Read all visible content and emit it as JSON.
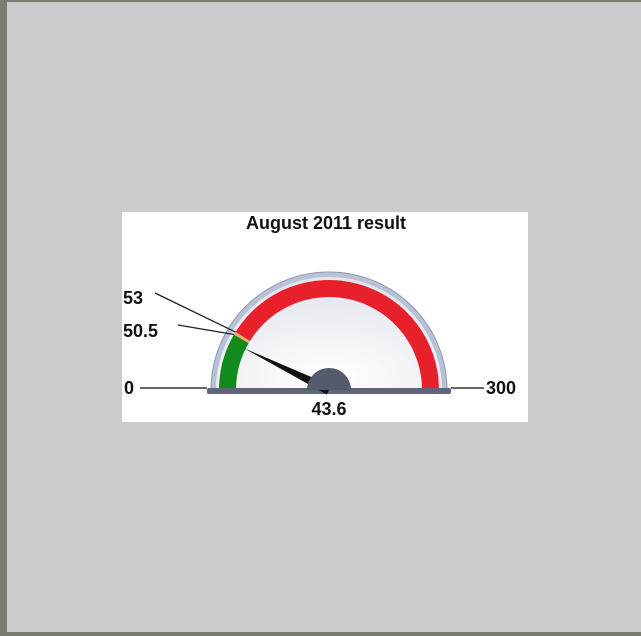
{
  "chart_data": {
    "type": "gauge",
    "title": "August 2011 result",
    "lim": [
      0,
      300
    ],
    "value": 43.6,
    "bands": [
      {
        "to": 50.5,
        "color": "#138a1c"
      },
      {
        "to": 53,
        "color": "#e9b26a"
      },
      {
        "color": "#e8202c"
      }
    ],
    "needle_color": "#111111"
  }
}
